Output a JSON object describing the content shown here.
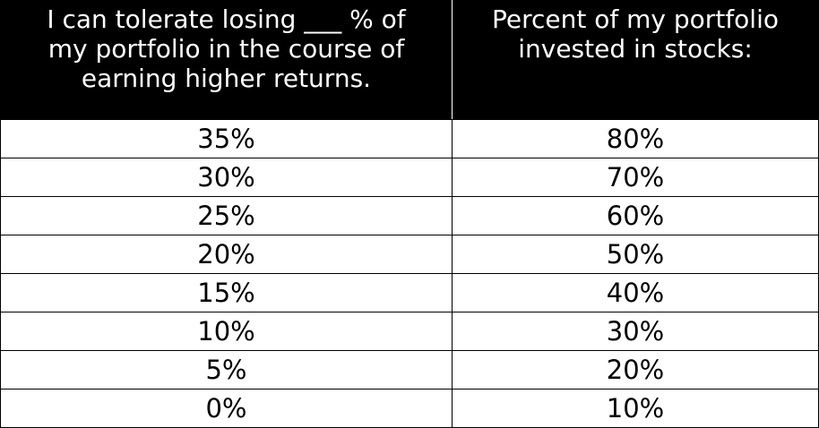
{
  "table": {
    "header": [
      {
        "lines": [
          "I can tolerate losing ___ % of",
          "my portfolio in the course of",
          "earning higher returns."
        ]
      },
      {
        "lines": [
          "Percent of my portfolio",
          "invested in stocks:"
        ]
      }
    ],
    "rows": [
      [
        "35%",
        "80%"
      ],
      [
        "30%",
        "70%"
      ],
      [
        "25%",
        "60%"
      ],
      [
        "20%",
        "50%"
      ],
      [
        "15%",
        "40%"
      ],
      [
        "10%",
        "30%"
      ],
      [
        "5%",
        "20%"
      ],
      [
        "0%",
        "10%"
      ]
    ]
  }
}
